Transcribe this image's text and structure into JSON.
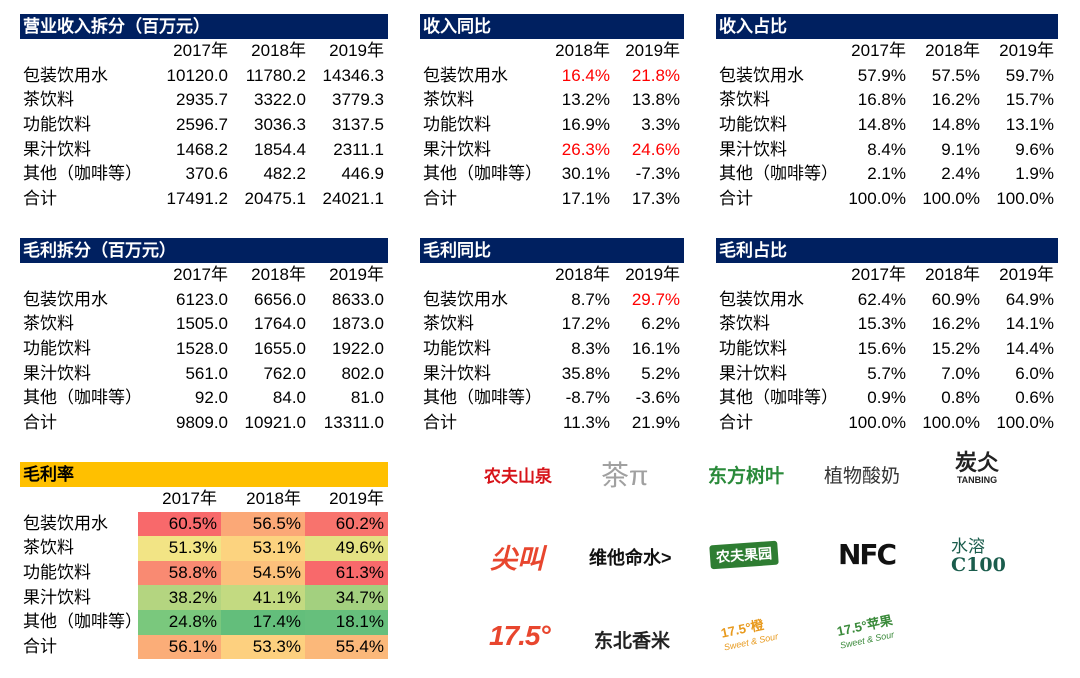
{
  "revenue_split": {
    "title": "营业收入拆分（百万元）",
    "years": [
      "2017年",
      "2018年",
      "2019年"
    ],
    "rows": [
      {
        "name": "包装饮用水",
        "values": [
          "10120.0",
          "11780.2",
          "14346.3"
        ]
      },
      {
        "name": "茶饮料",
        "values": [
          "2935.7",
          "3322.0",
          "3779.3"
        ]
      },
      {
        "name": "功能饮料",
        "values": [
          "2596.7",
          "3036.3",
          "3137.5"
        ]
      },
      {
        "name": "果汁饮料",
        "values": [
          "1468.2",
          "1854.4",
          "2311.1"
        ]
      },
      {
        "name": "其他（咖啡等）",
        "values": [
          "370.6",
          "482.2",
          "446.9"
        ]
      },
      {
        "name": "合计",
        "values": [
          "17491.2",
          "20475.1",
          "24021.1"
        ]
      }
    ]
  },
  "revenue_yoy": {
    "title": "收入同比",
    "years": [
      "2018年",
      "2019年"
    ],
    "rows": [
      {
        "name": "包装饮用水",
        "values": [
          "16.4%",
          "21.8%"
        ],
        "red": [
          true,
          true
        ]
      },
      {
        "name": "茶饮料",
        "values": [
          "13.2%",
          "13.8%"
        ],
        "red": [
          false,
          false
        ]
      },
      {
        "name": "功能饮料",
        "values": [
          "16.9%",
          "3.3%"
        ],
        "red": [
          false,
          false
        ]
      },
      {
        "name": "果汁饮料",
        "values": [
          "26.3%",
          "24.6%"
        ],
        "red": [
          true,
          true
        ]
      },
      {
        "name": "其他（咖啡等）",
        "values": [
          "30.1%",
          "-7.3%"
        ],
        "red": [
          false,
          false
        ]
      },
      {
        "name": "合计",
        "values": [
          "17.1%",
          "17.3%"
        ],
        "red": [
          false,
          false
        ]
      }
    ]
  },
  "revenue_share": {
    "title": "收入占比",
    "years": [
      "2017年",
      "2018年",
      "2019年"
    ],
    "rows": [
      {
        "name": "包装饮用水",
        "values": [
          "57.9%",
          "57.5%",
          "59.7%"
        ]
      },
      {
        "name": "茶饮料",
        "values": [
          "16.8%",
          "16.2%",
          "15.7%"
        ]
      },
      {
        "name": "功能饮料",
        "values": [
          "14.8%",
          "14.8%",
          "13.1%"
        ]
      },
      {
        "name": "果汁饮料",
        "values": [
          "8.4%",
          "9.1%",
          "9.6%"
        ]
      },
      {
        "name": "其他（咖啡等）",
        "values": [
          "2.1%",
          "2.4%",
          "1.9%"
        ]
      },
      {
        "name": "合计",
        "values": [
          "100.0%",
          "100.0%",
          "100.0%"
        ]
      }
    ]
  },
  "gross_profit_split": {
    "title": "毛利拆分（百万元）",
    "years": [
      "2017年",
      "2018年",
      "2019年"
    ],
    "rows": [
      {
        "name": "包装饮用水",
        "values": [
          "6123.0",
          "6656.0",
          "8633.0"
        ]
      },
      {
        "name": "茶饮料",
        "values": [
          "1505.0",
          "1764.0",
          "1873.0"
        ]
      },
      {
        "name": "功能饮料",
        "values": [
          "1528.0",
          "1655.0",
          "1922.0"
        ]
      },
      {
        "name": "果汁饮料",
        "values": [
          "561.0",
          "762.0",
          "802.0"
        ]
      },
      {
        "name": "其他（咖啡等）",
        "values": [
          "92.0",
          "84.0",
          "81.0"
        ]
      },
      {
        "name": "合计",
        "values": [
          "9809.0",
          "10921.0",
          "13311.0"
        ]
      }
    ]
  },
  "gross_profit_yoy": {
    "title": "毛利同比",
    "years": [
      "2018年",
      "2019年"
    ],
    "rows": [
      {
        "name": "包装饮用水",
        "values": [
          "8.7%",
          "29.7%"
        ],
        "red": [
          false,
          true
        ]
      },
      {
        "name": "茶饮料",
        "values": [
          "17.2%",
          "6.2%"
        ],
        "red": [
          false,
          false
        ]
      },
      {
        "name": "功能饮料",
        "values": [
          "8.3%",
          "16.1%"
        ],
        "red": [
          false,
          false
        ]
      },
      {
        "name": "果汁饮料",
        "values": [
          "35.8%",
          "5.2%"
        ],
        "red": [
          false,
          false
        ]
      },
      {
        "name": "其他（咖啡等）",
        "values": [
          "-8.7%",
          "-3.6%"
        ],
        "red": [
          false,
          false
        ]
      },
      {
        "name": "合计",
        "values": [
          "11.3%",
          "21.9%"
        ],
        "red": [
          false,
          false
        ]
      }
    ]
  },
  "gross_profit_share": {
    "title": "毛利占比",
    "years": [
      "2017年",
      "2018年",
      "2019年"
    ],
    "rows": [
      {
        "name": "包装饮用水",
        "values": [
          "62.4%",
          "60.9%",
          "64.9%"
        ]
      },
      {
        "name": "茶饮料",
        "values": [
          "15.3%",
          "16.2%",
          "14.1%"
        ]
      },
      {
        "name": "功能饮料",
        "values": [
          "15.6%",
          "15.2%",
          "14.4%"
        ]
      },
      {
        "name": "果汁饮料",
        "values": [
          "5.7%",
          "7.0%",
          "6.0%"
        ]
      },
      {
        "name": "其他（咖啡等）",
        "values": [
          "0.9%",
          "0.8%",
          "0.6%"
        ]
      },
      {
        "name": "合计",
        "values": [
          "100.0%",
          "100.0%",
          "100.0%"
        ]
      }
    ]
  },
  "gross_margin": {
    "title": "毛利率",
    "years": [
      "2017年",
      "2018年",
      "2019年"
    ],
    "rows": [
      {
        "name": "包装饮用水",
        "values": [
          "60.5%",
          "56.5%",
          "60.2%"
        ],
        "colors": [
          "#f8696b",
          "#fba877",
          "#f8736d"
        ]
      },
      {
        "name": "茶饮料",
        "values": [
          "51.3%",
          "53.1%",
          "49.6%"
        ],
        "colors": [
          "#f2e485",
          "#fcd37f",
          "#e4e283"
        ]
      },
      {
        "name": "功能饮料",
        "values": [
          "58.8%",
          "54.5%",
          "61.3%"
        ],
        "colors": [
          "#f98a72",
          "#fcc07b",
          "#f8696b"
        ]
      },
      {
        "name": "果汁饮料",
        "values": [
          "38.2%",
          "41.1%",
          "34.7%"
        ],
        "colors": [
          "#b4d580",
          "#c3da81",
          "#a3d07f"
        ]
      },
      {
        "name": "其他（咖啡等）",
        "values": [
          "24.8%",
          "17.4%",
          "18.1%"
        ],
        "colors": [
          "#7ac87d",
          "#63be7b",
          "#66bf7c"
        ]
      },
      {
        "name": "合计",
        "values": [
          "56.1%",
          "53.3%",
          "55.4%"
        ],
        "colors": [
          "#fbad78",
          "#fdd07f",
          "#fbb87a"
        ]
      }
    ]
  },
  "brand_logos": [
    {
      "id": "nongfu-spring",
      "text": "农夫山泉",
      "color": "#d7141a"
    },
    {
      "id": "chapi",
      "text": "茶π",
      "color": "#a0a0a0"
    },
    {
      "id": "dongfang-shuye",
      "text": "东方树叶",
      "color": "#2a8a3a"
    },
    {
      "id": "zhiwu-suannai",
      "text": "植物酸奶",
      "color": "#333333"
    },
    {
      "id": "tanbing",
      "text": "炭仌",
      "subtext": "TANBING",
      "color": "#222222"
    },
    {
      "id": "jianjiao",
      "text": "尖叫",
      "color": "#e8462e"
    },
    {
      "id": "vitamin-water",
      "text": "维他命水>",
      "color": "#111111"
    },
    {
      "id": "nongfu-guoyuan",
      "text": "农夫果园",
      "color": "#ffffff",
      "bg": "#2e7d32"
    },
    {
      "id": "nfc",
      "text": "NFC",
      "color": "#111111"
    },
    {
      "id": "shuirong-c100",
      "text": "水溶",
      "subtext": "C100",
      "color": "#1a5c4c"
    },
    {
      "id": "brand-175",
      "text": "17.5°",
      "color": "#e8462e"
    },
    {
      "id": "dongbei-xiangmi",
      "text": "东北香米",
      "color": "#222222"
    },
    {
      "id": "orange-175",
      "text": "17.5°橙",
      "subtext": "Sweet & Sour",
      "color": "#e89a1e"
    },
    {
      "id": "apple-175",
      "text": "17.5°苹果",
      "subtext": "Sweet & Sour",
      "color": "#3a8a3a"
    }
  ]
}
